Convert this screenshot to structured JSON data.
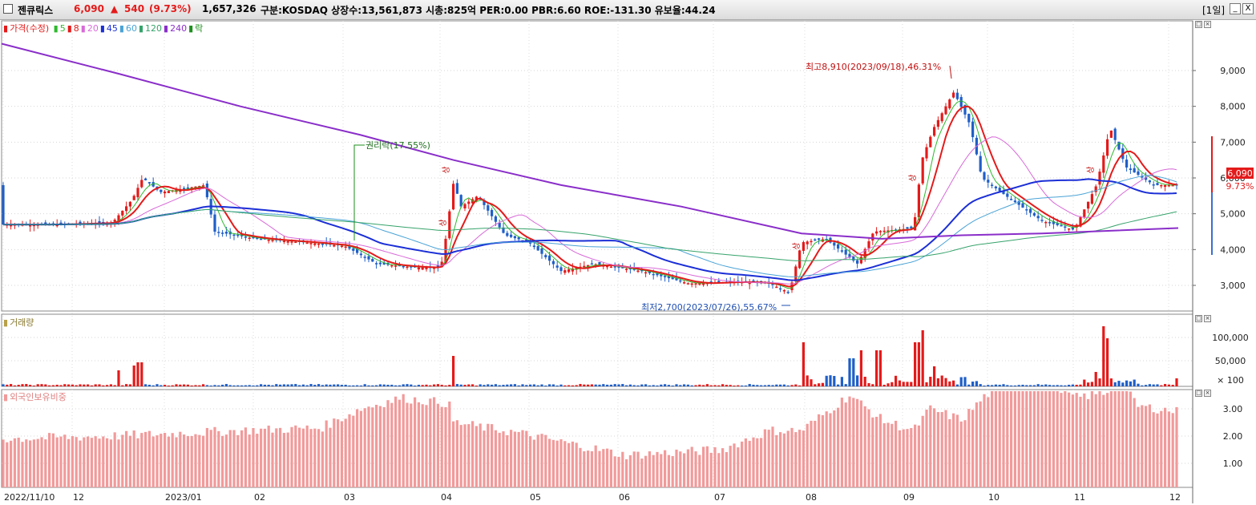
{
  "header": {
    "stock_name": "젠큐릭스",
    "price": "6,090",
    "change_arrow": "▲",
    "change": "540",
    "change_pct": "(9.73%)",
    "volume": "1,657,326",
    "info": "구분:KOSDAQ 상장수:13,561,873 시총:825억 PER:0.00 PBR:6.60 ROE:-131.30 유보율:44.24",
    "period": "[1일]",
    "min_button": "_",
    "close_button": "X"
  },
  "price_panel": {
    "legend_price": "가격(수정)",
    "legend_ma": [
      {
        "label": "5",
        "color": "#2db92d"
      },
      {
        "label": "8",
        "color": "#e41a1a"
      },
      {
        "label": "20",
        "color": "#d86ad8"
      },
      {
        "label": "45",
        "color": "#1b2fd6"
      },
      {
        "label": "60",
        "color": "#4aa3d6"
      },
      {
        "label": "120",
        "color": "#36a36b"
      },
      {
        "label": "240",
        "color": "#8a2ec9"
      },
      {
        "label": "락",
        "color": "#1e8f1e"
      }
    ],
    "y_ticks": [
      "9,000",
      "8,000",
      "7,000",
      "6,000",
      "5,000",
      "4,000",
      "3,000"
    ],
    "current_price_tag": "6,090",
    "current_pct_tag": "9.73%",
    "annotation_high": "최고8,910(2023/09/18),46.31%",
    "annotation_low": "최저2,700(2023/07/26),55.67%",
    "annotation_rights": "권리락(17.55%)",
    "limit_up_label": "상"
  },
  "volume_panel": {
    "legend": "거래량",
    "y_ticks": [
      "100,000",
      "50,000",
      "× 100"
    ]
  },
  "foreign_panel": {
    "legend": "외국인보유비중",
    "y_ticks": [
      "3.00",
      "2.00",
      "1.00"
    ]
  },
  "x_axis": [
    "2022/11/10",
    "12",
    "2023/01",
    "02",
    "03",
    "04",
    "05",
    "06",
    "07",
    "08",
    "09",
    "10",
    "11",
    "12"
  ],
  "colors": {
    "up": "#e41a1a",
    "down": "#1f5fc8",
    "foreign": "#f29a9a",
    "grid": "#c8c8c8"
  }
}
